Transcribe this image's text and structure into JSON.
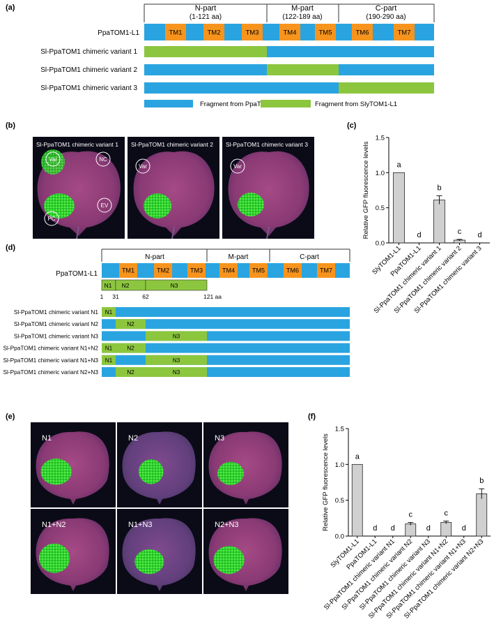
{
  "colors": {
    "ppa": "#2aa4e0",
    "sly": "#8cc63f",
    "tm": "#f7941d",
    "bar_fill": "#d0d0d0",
    "leaf_bg": "#0b0b18"
  },
  "panel_a": {
    "letter": "(a)",
    "part_n": "N-part",
    "part_n_range": "(1-121 aa)",
    "part_m": "M-part",
    "part_m_range": "(122-189 aa)",
    "part_c": "C-part",
    "part_c_range": "(190-290 aa)",
    "ref_label": "PpaTOM1-L1",
    "tm_labels": [
      "TM1",
      "TM2",
      "TM3",
      "TM4",
      "TM5",
      "TM6",
      "TM7"
    ],
    "rows": [
      {
        "label": "Sl-PpaTOM1 chimeric variant 1"
      },
      {
        "label": "Sl-PpaTOM1 chimeric variant 2"
      },
      {
        "label": "Sl-PpaTOM1 chimeric variant 3"
      }
    ],
    "legend_ppa": "Fragment from PpaTOM1-L1",
    "legend_sly": "Fragment from SlyTOM1-L1"
  },
  "panel_b": {
    "letter": "(b)",
    "photos": [
      {
        "title": "Sl-PpaTOM1 chimeric variant 1",
        "markers": [
          "Var",
          "NC",
          "EV",
          "PC"
        ]
      },
      {
        "title": "Sl-PpaTOM1 chimeric variant 2",
        "markers": [
          "Var"
        ]
      },
      {
        "title": "Sl-PpaTOM1 chimeric variant 3",
        "markers": [
          "Var"
        ]
      }
    ]
  },
  "panel_d": {
    "letter": "(d)",
    "part_n": "N-part",
    "part_m": "M-part",
    "part_c": "C-part",
    "ref_label": "PpaTOM1-L1",
    "tm_labels": [
      "TM1",
      "TM2",
      "TM3",
      "TM4",
      "TM5",
      "TM6",
      "TM7"
    ],
    "seg_labels": [
      "N1",
      "N2",
      "N3"
    ],
    "ticks": [
      "1",
      "31",
      "62",
      "121 aa"
    ],
    "rows": [
      {
        "label": "Sl-PpaTOM1 chimeric variant N1"
      },
      {
        "label": "Sl-PpaTOM1 chimeric variant N2"
      },
      {
        "label": "Sl-PpaTOM1 chimeric variant N3"
      },
      {
        "label": "Sl-PpaTOM1 chimeric variant N1+N2"
      },
      {
        "label": "Sl-PpaTOM1 chimeric variant N1+N3"
      },
      {
        "label": "Sl-PpaTOM1 chimeric variant N2+N3"
      }
    ]
  },
  "panel_e": {
    "letter": "(e)",
    "photos": [
      "N1",
      "N2",
      "N3",
      "N1+N2",
      "N1+N3",
      "N2+N3"
    ]
  },
  "chart_data": [
    {
      "panel": "(c)",
      "type": "bar",
      "categories": [
        "SlyTOM1-L1",
        "PpaTOM1-L1",
        "Sl-PpaTOM1 chimeric variant 1",
        "Sl-PpaTOM1 chimeric variant 2",
        "Sl-PpaTOM1 chimeric variant 3"
      ],
      "values": [
        1.0,
        0.0,
        0.61,
        0.04,
        0.0
      ],
      "errors": [
        0.0,
        0.0,
        0.06,
        0.01,
        0.0
      ],
      "letters": [
        "a",
        "d",
        "b",
        "c",
        "d"
      ],
      "ylabel": "Relative GFP fluorescence levels",
      "ylim": [
        0,
        1.5
      ],
      "yticks": [
        "0.0",
        "0.5",
        "1.0",
        "1.5"
      ]
    },
    {
      "panel": "(f)",
      "type": "bar",
      "categories": [
        "SlyTOM1-L1",
        "PpaTOM1-L1",
        "Sl-PpaTOM1 chimeric variant N1",
        "Sl-PpaTOM1 chimeric variant N2",
        "Sl-PpaTOM1 chimeric variant N3",
        "Sl-PpaTOM1 chimeric variant N1+N2",
        "Sl-PpaTOM1 chimeric variant N1+N3",
        "Sl-PpaTOM1 chimeric variant N2+N3"
      ],
      "values": [
        1.0,
        0.0,
        0.0,
        0.17,
        0.0,
        0.19,
        0.0,
        0.59
      ],
      "errors": [
        0.0,
        0.0,
        0.0,
        0.02,
        0.0,
        0.02,
        0.0,
        0.07
      ],
      "letters": [
        "a",
        "d",
        "d",
        "c",
        "d",
        "c",
        "d",
        "b"
      ],
      "ylabel": "Relative GFP fluorescence levels",
      "ylim": [
        0,
        1.5
      ],
      "yticks": [
        "0.0",
        "0.5",
        "1.0",
        "1.5"
      ]
    }
  ]
}
